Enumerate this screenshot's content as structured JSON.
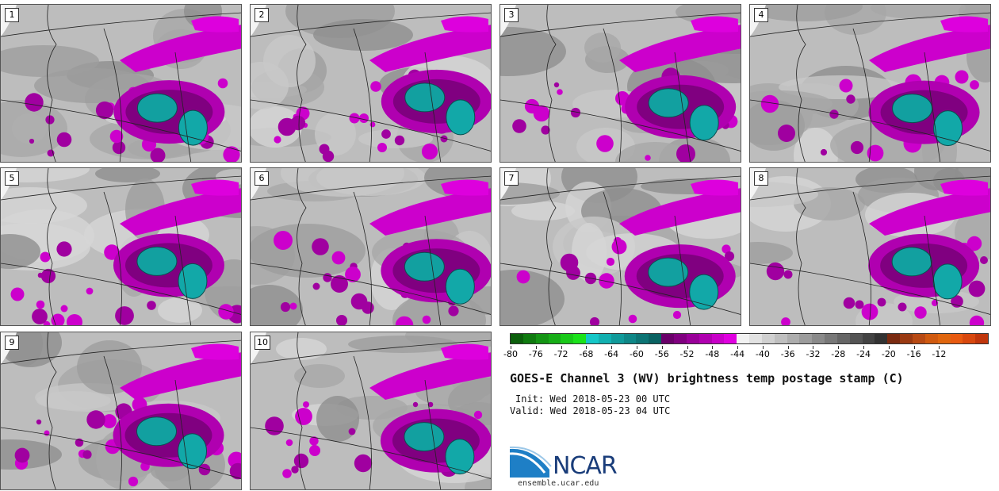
{
  "title": "GOES-E Channel 3 (WV) brightness temp postage stamp (C)",
  "init_line": "Init: Wed 2018-05-23 00 UTC",
  "valid_line": "Valid: Wed 2018-05-23 04 UTC",
  "logo": {
    "brand": "NCAR",
    "url": "ensemble.ucar.edu"
  },
  "members": [
    "1",
    "2",
    "3",
    "4",
    "5",
    "6",
    "7",
    "8",
    "9",
    "10"
  ],
  "colorbar": {
    "colors": [
      "#0b5e0b",
      "#0f7a0f",
      "#149414",
      "#17ad17",
      "#19c919",
      "#1be31b",
      "#15c7c7",
      "#12b0b0",
      "#109a9a",
      "#0e8787",
      "#0c7474",
      "#0a6262",
      "#6a006a",
      "#800080",
      "#990099",
      "#b000b0",
      "#c800c8",
      "#e000e0",
      "#f2f2f2",
      "#e2e2e2",
      "#d0d0d0",
      "#bfbfbf",
      "#adadad",
      "#9c9c9c",
      "#8a8a8a",
      "#787878",
      "#666666",
      "#545454",
      "#434343",
      "#323232",
      "#7a2a10",
      "#9a3a12",
      "#b84a14",
      "#d05a10",
      "#e0660e",
      "#e85a10",
      "#d8480e",
      "#c0360c"
    ],
    "tick_labels": [
      "-80",
      "-76",
      "-72",
      "-68",
      "-64",
      "-60",
      "-56",
      "-52",
      "-48",
      "-44",
      "-40",
      "-36",
      "-32",
      "-28",
      "-24",
      "-20",
      "-16",
      "-12"
    ]
  }
}
